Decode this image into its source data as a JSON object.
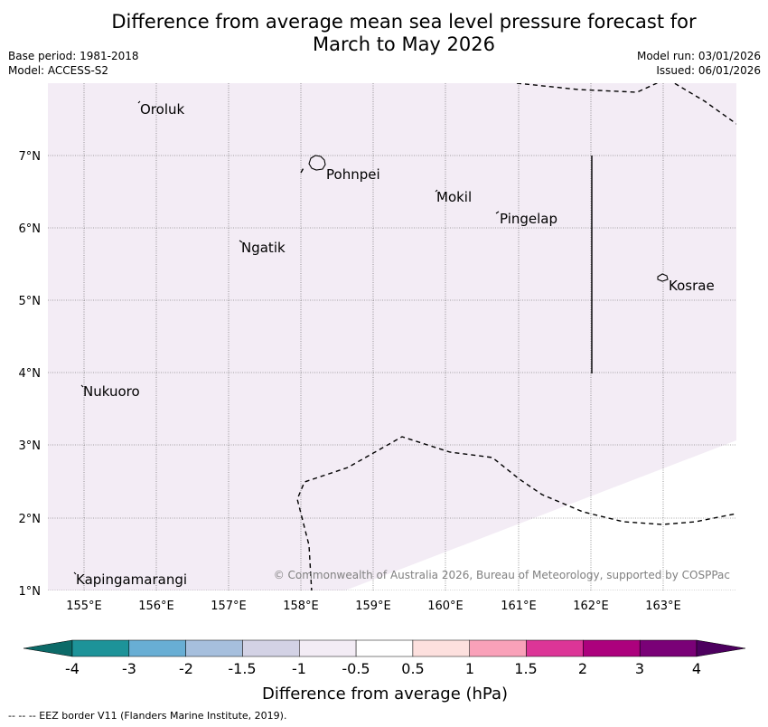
{
  "title": {
    "line1": "Difference from average mean sea level pressure forecast for",
    "line2": "March to May 2026"
  },
  "meta": {
    "base_period": "Base period: 1981-2018",
    "model": "Model: ACCESS-S2",
    "model_run": "Model run: 03/01/2026",
    "issued": "Issued: 06/01/2026"
  },
  "map": {
    "lon_ticks": [
      "155°E",
      "156°E",
      "157°E",
      "158°E",
      "159°E",
      "160°E",
      "161°E",
      "162°E",
      "163°E"
    ],
    "lat_ticks": [
      "7°N",
      "6°N",
      "5°N",
      "4°N",
      "3°N",
      "2°N",
      "1°N"
    ],
    "places": {
      "oroluk": "Oroluk",
      "pohnpei": "Pohnpei",
      "mokil": "Mokil",
      "pingelap": "Pingelap",
      "ngatik": "Ngatik",
      "kosrae": "Kosrae",
      "nukuoro": "Nukuoro",
      "kapingamarangi": "Kapingamarangi"
    },
    "copyright": "© Commonwealth of Australia 2026, Bureau of Meteorology, supported by COSPPac",
    "fill_color": "#f3ecf5"
  },
  "colorbar": {
    "label": "Difference from average (hPa)",
    "ticks": [
      "-4",
      "-3",
      "-2",
      "-1.5",
      "-1",
      "-0.5",
      "0.5",
      "1",
      "1.5",
      "2",
      "3",
      "4"
    ],
    "colors": [
      "#1d9399",
      "#68aed4",
      "#a6bfdd",
      "#d3d2e5",
      "#f3ecf5",
      "#ffffff",
      "#fde0de",
      "#f9a1b9",
      "#dc3597",
      "#ac017d",
      "#7a0177"
    ],
    "low_color": "#0c6a68",
    "high_color": "#4d005f"
  },
  "footer": {
    "legend": "--  --  -- EEZ border V11 (Flanders Marine Institute, 2019)."
  }
}
